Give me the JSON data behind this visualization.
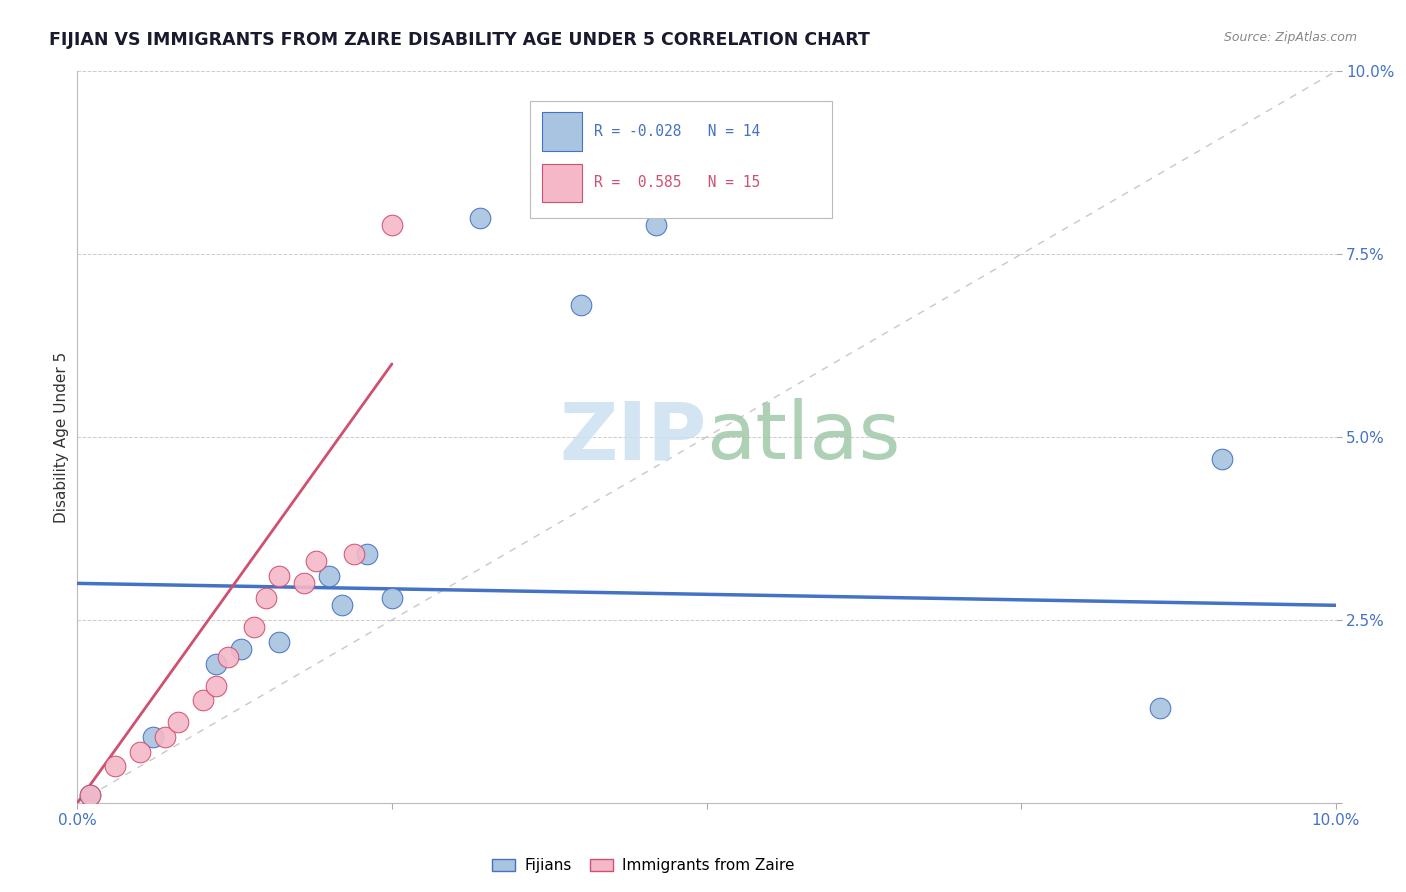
{
  "title": "FIJIAN VS IMMIGRANTS FROM ZAIRE DISABILITY AGE UNDER 5 CORRELATION CHART",
  "source": "Source: ZipAtlas.com",
  "ylabel": "Disability Age Under 5",
  "xlim": [
    0.0,
    0.1
  ],
  "ylim": [
    0.0,
    0.1
  ],
  "legend_label1": "Fijians",
  "legend_label2": "Immigrants from Zaire",
  "r1": "-0.028",
  "n1": "14",
  "r2": "0.585",
  "n2": "15",
  "fijians_x": [
    0.001,
    0.006,
    0.011,
    0.013,
    0.016,
    0.02,
    0.021,
    0.023,
    0.025,
    0.032,
    0.04,
    0.046,
    0.086,
    0.091
  ],
  "fijians_y": [
    0.001,
    0.009,
    0.019,
    0.021,
    0.022,
    0.031,
    0.027,
    0.034,
    0.028,
    0.08,
    0.068,
    0.079,
    0.013,
    0.047
  ],
  "zaire_x": [
    0.001,
    0.003,
    0.005,
    0.007,
    0.008,
    0.01,
    0.011,
    0.012,
    0.014,
    0.015,
    0.016,
    0.018,
    0.019,
    0.022,
    0.025
  ],
  "zaire_y": [
    0.001,
    0.005,
    0.007,
    0.009,
    0.011,
    0.014,
    0.016,
    0.02,
    0.024,
    0.028,
    0.031,
    0.03,
    0.033,
    0.034,
    0.079
  ],
  "fijian_line_x": [
    0.0,
    0.1
  ],
  "fijian_line_y": [
    0.03,
    0.027
  ],
  "zaire_line_x": [
    0.0,
    0.025
  ],
  "zaire_line_y": [
    0.0,
    0.06
  ],
  "color_fijian": "#a8c4e0",
  "color_zaire": "#f4b8c8",
  "line_color_fijian": "#4472c4",
  "line_color_zaire": "#d05070",
  "diagonal_color": "#c8c8c8",
  "title_color": "#1a1a2e",
  "axis_color": "#4472c4",
  "grid_color": "#cccccc",
  "background_color": "#ffffff",
  "watermark_color": "#cce0f0"
}
